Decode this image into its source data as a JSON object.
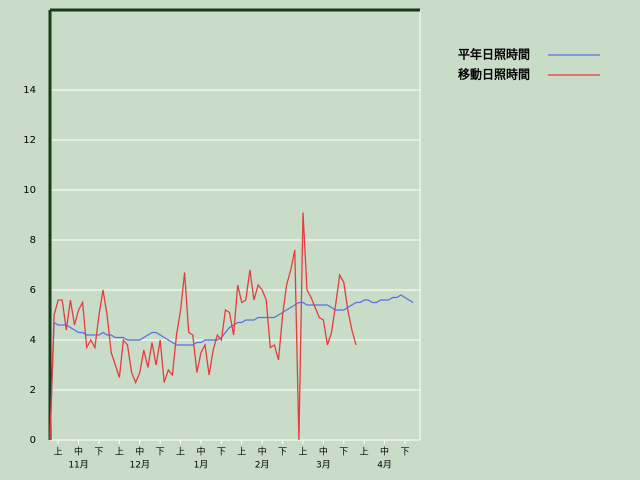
{
  "chart_data": {
    "type": "line",
    "grid": true,
    "ylim": [
      0,
      17.2
    ],
    "yticks": [
      0,
      2,
      4,
      6,
      8,
      10,
      12,
      14
    ],
    "categories": [
      null,
      null,
      "上",
      null,
      null,
      null,
      null,
      "中",
      null,
      null,
      null,
      null,
      "下",
      null,
      null,
      null,
      null,
      "上",
      null,
      null,
      null,
      null,
      "中",
      null,
      null,
      null,
      null,
      "下",
      null,
      null,
      null,
      null,
      "上",
      null,
      null,
      null,
      null,
      "中",
      null,
      null,
      null,
      null,
      "下",
      null,
      null,
      null,
      null,
      "上",
      null,
      null,
      null,
      null,
      "中",
      null,
      null,
      null,
      null,
      "下",
      null,
      null,
      null,
      null,
      "上",
      null,
      null,
      null,
      null,
      "中",
      null,
      null,
      null,
      null,
      "下",
      null,
      null,
      null,
      null,
      "上",
      null,
      null,
      null,
      null,
      "中",
      null,
      null,
      null,
      null,
      "下",
      null,
      null
    ],
    "months": [
      "11月",
      "12月",
      "1月",
      "2月",
      "3月",
      "4月"
    ],
    "series": [
      {
        "name": "平年日照時間",
        "color": "#5a6ee6",
        "values": [
          0,
          4.7,
          4.6,
          4.6,
          4.6,
          4.5,
          4.4,
          4.3,
          4.3,
          4.2,
          4.2,
          4.2,
          4.2,
          4.3,
          4.2,
          4.2,
          4.1,
          4.1,
          4.1,
          4.0,
          4.0,
          4.0,
          4.0,
          4.1,
          4.2,
          4.3,
          4.3,
          4.2,
          4.1,
          4.0,
          3.9,
          3.8,
          3.8,
          3.8,
          3.8,
          3.8,
          3.9,
          3.9,
          4.0,
          4.0,
          4.0,
          4.0,
          4.1,
          4.3,
          4.5,
          4.6,
          4.7,
          4.7,
          4.8,
          4.8,
          4.8,
          4.9,
          4.9,
          4.9,
          4.9,
          4.9,
          5.0,
          5.1,
          5.2,
          5.3,
          5.4,
          5.5,
          5.5,
          5.4,
          5.4,
          5.4,
          5.4,
          5.4,
          5.4,
          5.3,
          5.2,
          5.2,
          5.2,
          5.3,
          5.4,
          5.5,
          5.5,
          5.6,
          5.6,
          5.5,
          5.5,
          5.6,
          5.6,
          5.6,
          5.7,
          5.7,
          5.8,
          5.7,
          5.6,
          5.5
        ]
      },
      {
        "name": "移動日照時間",
        "color": "#e63c3c",
        "values": [
          0,
          5.0,
          5.6,
          5.6,
          4.4,
          5.6,
          4.6,
          5.2,
          5.5,
          3.7,
          4.0,
          3.7,
          5.0,
          6.0,
          5.0,
          3.5,
          3.0,
          2.5,
          4.0,
          3.8,
          2.7,
          2.3,
          2.7,
          3.6,
          2.9,
          3.9,
          3.0,
          4.0,
          2.3,
          2.8,
          2.6,
          4.2,
          5.2,
          6.7,
          4.3,
          4.2,
          2.7,
          3.5,
          3.8,
          2.6,
          3.6,
          4.2,
          4.0,
          5.2,
          5.1,
          4.2,
          6.2,
          5.5,
          5.6,
          6.8,
          5.6,
          6.2,
          6.0,
          5.6,
          3.7,
          3.8,
          3.2,
          5.0,
          6.2,
          6.8,
          7.6,
          0,
          9.1,
          6.0,
          5.7,
          5.3,
          4.9,
          4.8,
          3.8,
          4.3,
          5.4,
          6.6,
          6.3,
          5.2,
          4.4,
          3.8,
          null,
          null,
          null,
          null,
          null,
          null,
          null,
          null,
          null,
          null,
          null,
          null,
          null,
          null
        ]
      }
    ]
  }
}
